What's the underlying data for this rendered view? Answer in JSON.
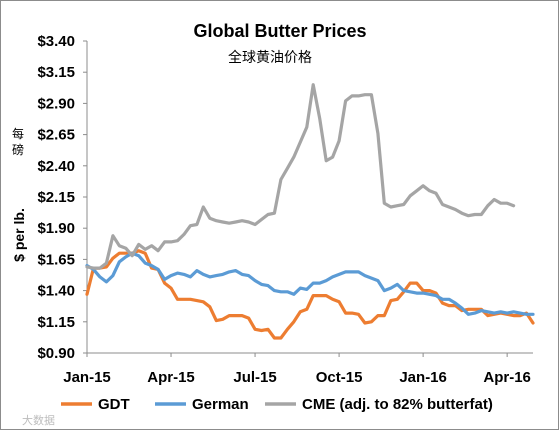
{
  "chart_data": {
    "type": "line",
    "title": "Global Butter Prices",
    "subtitle": "全球黄油价格",
    "ylabel": "$ per lb.",
    "ylabel_cn": "每磅",
    "ylim": [
      0.9,
      3.4
    ],
    "yticks": [
      "$3.40",
      "$3.15",
      "$2.90",
      "$2.65",
      "$2.40",
      "$2.15",
      "$1.90",
      "$1.65",
      "$1.40",
      "$1.15",
      "$0.90"
    ],
    "ytick_values": [
      3.4,
      3.15,
      2.9,
      2.65,
      2.4,
      2.15,
      1.9,
      1.65,
      1.4,
      1.15,
      0.9
    ],
    "x_range": [
      0,
      69
    ],
    "xticks": [
      {
        "label": "Jan-15",
        "at": 0
      },
      {
        "label": "Apr-15",
        "at": 13
      },
      {
        "label": "Jul-15",
        "at": 26
      },
      {
        "label": "Oct-15",
        "at": 39
      },
      {
        "label": "Jan-16",
        "at": 52
      },
      {
        "label": "Apr-16",
        "at": 65
      }
    ],
    "grid": false,
    "legend_position": "bottom",
    "series": [
      {
        "name": "GDT",
        "color": "#ED7D31",
        "values": [
          [
            0,
            1.37
          ],
          [
            1,
            1.58
          ],
          [
            2,
            1.58
          ],
          [
            3,
            1.59
          ],
          [
            4,
            1.66
          ],
          [
            5,
            1.7
          ],
          [
            6,
            1.7
          ],
          [
            7,
            1.7
          ],
          [
            8,
            1.72
          ],
          [
            9,
            1.7
          ],
          [
            10,
            1.58
          ],
          [
            11,
            1.57
          ],
          [
            12,
            1.46
          ],
          [
            13,
            1.42
          ],
          [
            14,
            1.33
          ],
          [
            15,
            1.33
          ],
          [
            16,
            1.33
          ],
          [
            17,
            1.32
          ],
          [
            18,
            1.31
          ],
          [
            19,
            1.27
          ],
          [
            20,
            1.16
          ],
          [
            21,
            1.17
          ],
          [
            22,
            1.2
          ],
          [
            23,
            1.2
          ],
          [
            24,
            1.2
          ],
          [
            25,
            1.18
          ],
          [
            26,
            1.09
          ],
          [
            27,
            1.08
          ],
          [
            28,
            1.09
          ],
          [
            29,
            1.02
          ],
          [
            30,
            1.02
          ],
          [
            31,
            1.09
          ],
          [
            32,
            1.15
          ],
          [
            33,
            1.23
          ],
          [
            34,
            1.25
          ],
          [
            35,
            1.36
          ],
          [
            36,
            1.36
          ],
          [
            37,
            1.36
          ],
          [
            38,
            1.33
          ],
          [
            39,
            1.31
          ],
          [
            40,
            1.22
          ],
          [
            41,
            1.22
          ],
          [
            42,
            1.21
          ],
          [
            43,
            1.14
          ],
          [
            44,
            1.15
          ],
          [
            45,
            1.2
          ],
          [
            46,
            1.2
          ],
          [
            47,
            1.32
          ],
          [
            48,
            1.33
          ],
          [
            49,
            1.39
          ],
          [
            50,
            1.46
          ],
          [
            51,
            1.46
          ],
          [
            52,
            1.4
          ],
          [
            53,
            1.4
          ],
          [
            54,
            1.38
          ],
          [
            55,
            1.3
          ],
          [
            56,
            1.28
          ],
          [
            57,
            1.28
          ],
          [
            58,
            1.24
          ],
          [
            59,
            1.25
          ],
          [
            60,
            1.25
          ],
          [
            61,
            1.25
          ],
          [
            62,
            1.2
          ],
          [
            63,
            1.21
          ],
          [
            64,
            1.22
          ],
          [
            65,
            1.21
          ],
          [
            66,
            1.2
          ],
          [
            67,
            1.2
          ],
          [
            68,
            1.22
          ],
          [
            69,
            1.14
          ]
        ]
      },
      {
        "name": "German",
        "color": "#5B9BD5",
        "values": [
          [
            0,
            1.6
          ],
          [
            1,
            1.57
          ],
          [
            2,
            1.51
          ],
          [
            3,
            1.47
          ],
          [
            4,
            1.52
          ],
          [
            5,
            1.63
          ],
          [
            6,
            1.67
          ],
          [
            7,
            1.7
          ],
          [
            8,
            1.68
          ],
          [
            9,
            1.62
          ],
          [
            10,
            1.6
          ],
          [
            11,
            1.57
          ],
          [
            12,
            1.49
          ],
          [
            13,
            1.52
          ],
          [
            14,
            1.54
          ],
          [
            15,
            1.53
          ],
          [
            16,
            1.51
          ],
          [
            17,
            1.56
          ],
          [
            18,
            1.53
          ],
          [
            19,
            1.51
          ],
          [
            20,
            1.52
          ],
          [
            21,
            1.53
          ],
          [
            22,
            1.55
          ],
          [
            23,
            1.56
          ],
          [
            24,
            1.53
          ],
          [
            25,
            1.52
          ],
          [
            26,
            1.48
          ],
          [
            27,
            1.45
          ],
          [
            28,
            1.44
          ],
          [
            29,
            1.4
          ],
          [
            30,
            1.39
          ],
          [
            31,
            1.39
          ],
          [
            32,
            1.37
          ],
          [
            33,
            1.42
          ],
          [
            34,
            1.41
          ],
          [
            35,
            1.46
          ],
          [
            36,
            1.46
          ],
          [
            37,
            1.48
          ],
          [
            38,
            1.51
          ],
          [
            39,
            1.53
          ],
          [
            40,
            1.55
          ],
          [
            41,
            1.55
          ],
          [
            42,
            1.55
          ],
          [
            43,
            1.52
          ],
          [
            44,
            1.5
          ],
          [
            45,
            1.48
          ],
          [
            46,
            1.4
          ],
          [
            47,
            1.42
          ],
          [
            48,
            1.45
          ],
          [
            49,
            1.4
          ],
          [
            50,
            1.39
          ],
          [
            51,
            1.38
          ],
          [
            52,
            1.38
          ],
          [
            53,
            1.37
          ],
          [
            54,
            1.36
          ],
          [
            55,
            1.33
          ],
          [
            56,
            1.33
          ],
          [
            57,
            1.3
          ],
          [
            58,
            1.26
          ],
          [
            59,
            1.21
          ],
          [
            60,
            1.22
          ],
          [
            61,
            1.24
          ],
          [
            62,
            1.23
          ],
          [
            63,
            1.22
          ],
          [
            64,
            1.23
          ],
          [
            65,
            1.22
          ],
          [
            66,
            1.23
          ],
          [
            67,
            1.22
          ],
          [
            68,
            1.21
          ],
          [
            69,
            1.21
          ]
        ]
      },
      {
        "name": "CME (adj. to 82% butterfat)",
        "color": "#A5A5A5",
        "values": [
          [
            0,
            1.59
          ],
          [
            1,
            1.58
          ],
          [
            2,
            1.58
          ],
          [
            3,
            1.62
          ],
          [
            4,
            1.84
          ],
          [
            5,
            1.76
          ],
          [
            6,
            1.74
          ],
          [
            7,
            1.68
          ],
          [
            8,
            1.77
          ],
          [
            9,
            1.73
          ],
          [
            10,
            1.76
          ],
          [
            11,
            1.72
          ],
          [
            12,
            1.79
          ],
          [
            13,
            1.79
          ],
          [
            14,
            1.8
          ],
          [
            15,
            1.85
          ],
          [
            16,
            1.92
          ],
          [
            17,
            1.93
          ],
          [
            18,
            2.07
          ],
          [
            19,
            1.98
          ],
          [
            20,
            1.96
          ],
          [
            21,
            1.95
          ],
          [
            22,
            1.94
          ],
          [
            23,
            1.95
          ],
          [
            24,
            1.96
          ],
          [
            25,
            1.95
          ],
          [
            26,
            1.93
          ],
          [
            27,
            1.97
          ],
          [
            28,
            2.01
          ],
          [
            29,
            2.02
          ],
          [
            30,
            2.29
          ],
          [
            31,
            2.38
          ],
          [
            32,
            2.47
          ],
          [
            33,
            2.59
          ],
          [
            34,
            2.71
          ],
          [
            35,
            3.05
          ],
          [
            36,
            2.78
          ],
          [
            37,
            2.44
          ],
          [
            38,
            2.47
          ],
          [
            39,
            2.6
          ],
          [
            40,
            2.92
          ],
          [
            41,
            2.96
          ],
          [
            42,
            2.96
          ],
          [
            43,
            2.97
          ],
          [
            44,
            2.97
          ],
          [
            45,
            2.66
          ],
          [
            46,
            2.1
          ],
          [
            47,
            2.07
          ],
          [
            48,
            2.08
          ],
          [
            49,
            2.09
          ],
          [
            50,
            2.16
          ],
          [
            51,
            2.2
          ],
          [
            52,
            2.24
          ],
          [
            53,
            2.2
          ],
          [
            54,
            2.18
          ],
          [
            55,
            2.09
          ],
          [
            56,
            2.07
          ],
          [
            57,
            2.05
          ],
          [
            58,
            2.02
          ],
          [
            59,
            2.0
          ],
          [
            60,
            2.01
          ],
          [
            61,
            2.01
          ],
          [
            62,
            2.08
          ],
          [
            63,
            2.13
          ],
          [
            64,
            2.1
          ],
          [
            65,
            2.1
          ],
          [
            66,
            2.08
          ]
        ]
      }
    ]
  },
  "watermark": "大数据"
}
